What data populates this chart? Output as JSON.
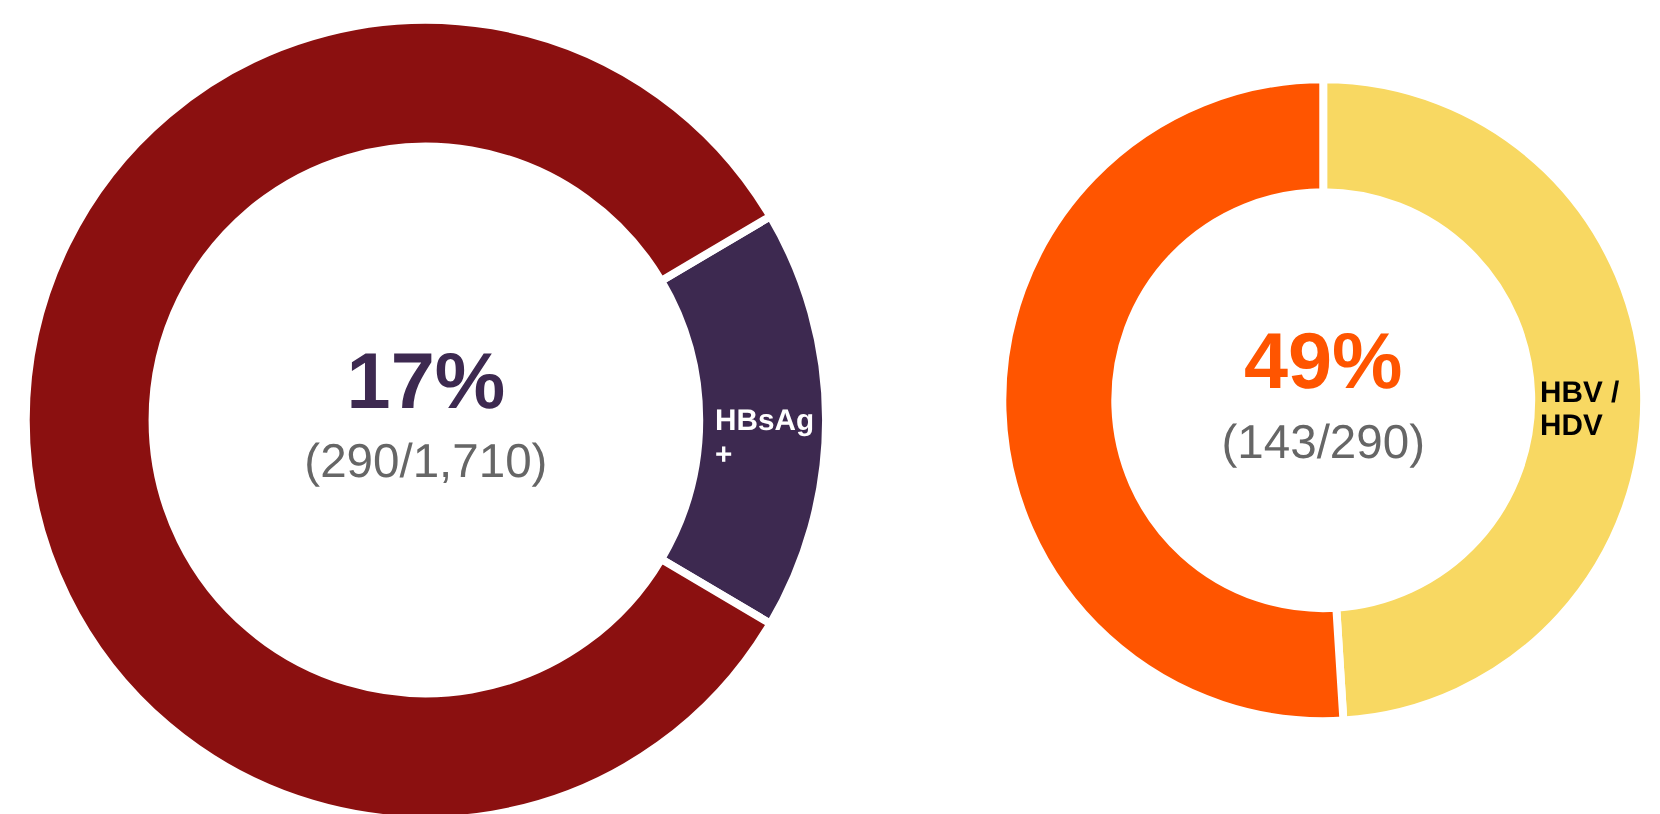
{
  "chart_data": [
    {
      "type": "donut",
      "categories": [
        "HBsAg\n+",
        null
      ],
      "values": [
        17,
        83
      ],
      "colors": [
        "#3d2950",
        "#8b1010"
      ],
      "annotations": [
        "17%",
        "(290/1,710)"
      ]
    },
    {
      "type": "donut",
      "categories": [
        "HBV /\nHDV",
        null
      ],
      "values": [
        49,
        51
      ],
      "colors": [
        "#f8d862",
        "#ff5500"
      ],
      "annotations": [
        "49%",
        "(143/290)"
      ]
    }
  ]
}
